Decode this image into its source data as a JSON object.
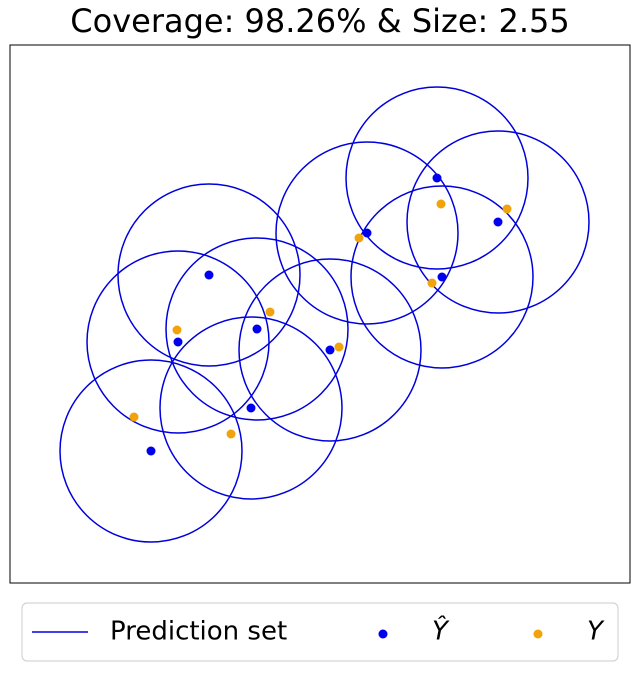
{
  "chart_data": {
    "type": "scatter",
    "title": "Coverage: 98.26% & Size: 2.55",
    "xlim": [
      0,
      620
    ],
    "ylim": [
      0,
      538
    ],
    "radius": 91,
    "legend": "bottom",
    "series": [
      {
        "name": "Prediction set",
        "color": "#0000dd",
        "x": [
          141,
          241,
          168,
          247,
          199,
          320,
          357,
          427,
          432,
          488
        ],
        "values": [
          132,
          175,
          241,
          254,
          308,
          233,
          350,
          405,
          306,
          361
        ]
      },
      {
        "name": "Ŷ",
        "color": "#0000ee",
        "x": [
          141,
          241,
          168,
          247,
          199,
          320,
          357,
          427,
          432,
          488
        ],
        "values": [
          132,
          175,
          241,
          254,
          308,
          233,
          350,
          405,
          306,
          361
        ]
      },
      {
        "name": "Y",
        "color": "#f0a30a",
        "x": [
          124,
          221,
          167,
          260,
          329,
          349,
          422,
          431,
          497
        ],
        "values": [
          166,
          149,
          253,
          271,
          236,
          345,
          300,
          379,
          374
        ]
      }
    ]
  }
}
